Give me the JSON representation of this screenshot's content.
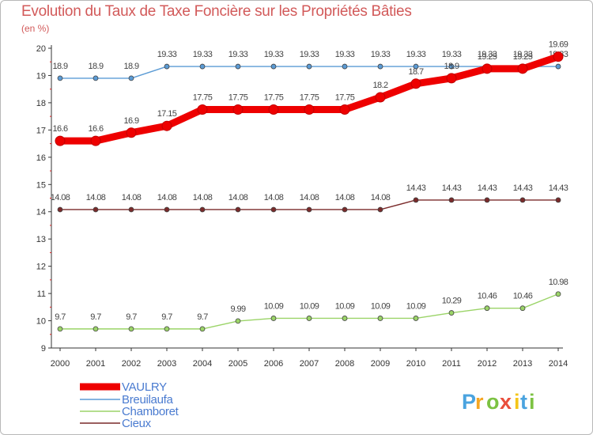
{
  "chart_data": {
    "type": "line",
    "title": "Evolution du Taux de Taxe Foncière sur les Propriétés Bâties",
    "ylabel": "(en %)",
    "xlabel": "",
    "x": [
      "2000",
      "2001",
      "2002",
      "2003",
      "2004",
      "2005",
      "2006",
      "2007",
      "2008",
      "2009",
      "2010",
      "2011",
      "2012",
      "2013",
      "2014"
    ],
    "ylim": [
      9,
      20
    ],
    "yticks": [
      "9",
      "10",
      "11",
      "12",
      "13",
      "14",
      "15",
      "16",
      "17",
      "18",
      "19",
      "20"
    ],
    "series": [
      {
        "name": "VAULRY",
        "color": "#ee0000",
        "values": [
          16.6,
          16.6,
          16.9,
          17.15,
          17.75,
          17.75,
          17.75,
          17.75,
          17.75,
          18.2,
          18.7,
          18.9,
          19.25,
          19.25,
          19.69
        ],
        "labels": [
          "16.6",
          "16.6",
          "16.9",
          "17.15",
          "17.75",
          "17.75",
          "17.75",
          "17.75",
          "17.75",
          "18.2",
          "18.7",
          "18.9",
          "19.25",
          "19.25",
          "19.69"
        ]
      },
      {
        "name": "Breuilaufa",
        "color": "#5b9bd5",
        "values": [
          18.9,
          18.9,
          18.9,
          19.33,
          19.33,
          19.33,
          19.33,
          19.33,
          19.33,
          19.33,
          19.33,
          19.33,
          19.33,
          19.33,
          19.33
        ],
        "labels": [
          "18.9",
          "18.9",
          "18.9",
          "19.33",
          "19.33",
          "19.33",
          "19.33",
          "19.33",
          "19.33",
          "19.33",
          "19.33",
          "19.33",
          "19.33",
          "19.33",
          "19.33"
        ]
      },
      {
        "name": "Chamboret",
        "color": "#9bd468",
        "values": [
          9.7,
          9.7,
          9.7,
          9.7,
          9.7,
          9.99,
          10.09,
          10.09,
          10.09,
          10.09,
          10.09,
          10.29,
          10.46,
          10.46,
          10.98
        ],
        "labels": [
          "9.7",
          "9.7",
          "9.7",
          "9.7",
          "9.7",
          "9.99",
          "10.09",
          "10.09",
          "10.09",
          "10.09",
          "10.09",
          "10.29",
          "10.46",
          "10.46",
          "10.98"
        ]
      },
      {
        "name": "Cieux",
        "color": "#7a2a2a",
        "values": [
          14.08,
          14.08,
          14.08,
          14.08,
          14.08,
          14.08,
          14.08,
          14.08,
          14.08,
          14.08,
          14.43,
          14.43,
          14.43,
          14.43,
          14.43
        ],
        "labels": [
          "14.08",
          "14.08",
          "14.08",
          "14.08",
          "14.08",
          "14.08",
          "14.08",
          "14.08",
          "14.08",
          "14.08",
          "14.43",
          "14.43",
          "14.43",
          "14.43",
          "14.43"
        ]
      }
    ],
    "legend": [
      "VAULRY",
      "Breuilaufa",
      "Chamboret",
      "Cieux"
    ],
    "grid": false,
    "legend_position": "bottom-left"
  },
  "brand": {
    "letters": [
      "P",
      "r",
      "o",
      "x",
      "i",
      "t",
      "i"
    ],
    "colors": [
      "#4aa3df",
      "#f5a623",
      "#7cc242",
      "#e94e3c",
      "#f5c518",
      "#4aa3df",
      "#7cc242"
    ]
  }
}
